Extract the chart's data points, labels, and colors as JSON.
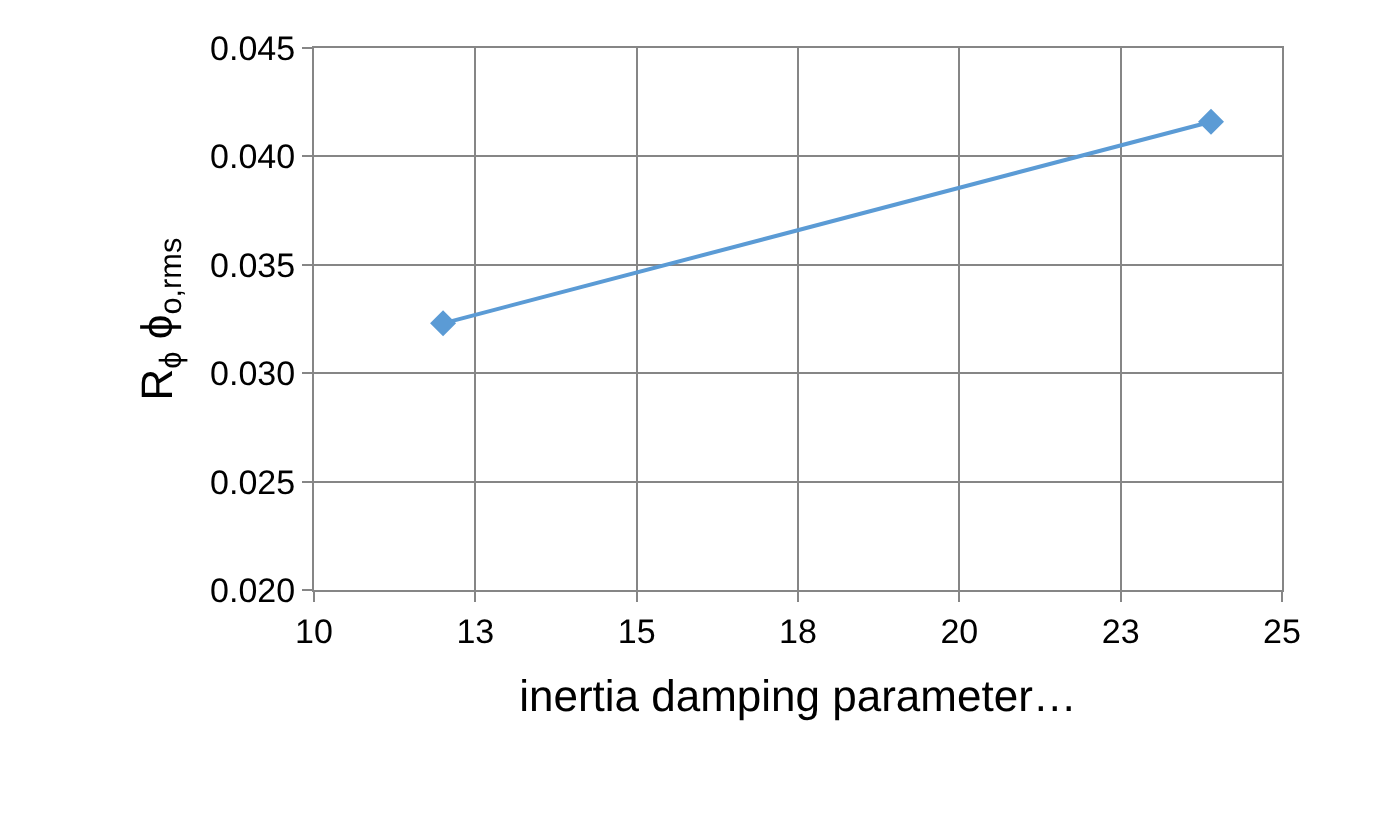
{
  "chart_data": {
    "type": "line",
    "xlabel": "inertia damping parameter…",
    "ylabel": "R$_{ϕ}$ ϕ$_{o,rms}$",
    "x": [
      12.0,
      23.9
    ],
    "series": [
      {
        "color": "#5b9bd5",
        "values": [
          0.0323,
          0.0416
        ]
      }
    ],
    "xlim": [
      10,
      25
    ],
    "xticks": [
      10,
      {
        "value": 12.5,
        "label": "13"
      },
      15,
      {
        "value": 17.5,
        "label": "18"
      },
      20,
      {
        "value": 22.5,
        "label": "23"
      },
      25
    ],
    "ylim": [
      0.02,
      0.045
    ],
    "yticks": [
      {
        "value": 0.02,
        "label": "0.020"
      },
      {
        "value": 0.025,
        "label": "0.025"
      },
      {
        "value": 0.03,
        "label": "0.030"
      },
      {
        "value": 0.035,
        "label": "0.035"
      },
      {
        "value": 0.04,
        "label": "0.040"
      },
      {
        "value": 0.045,
        "label": "0.045"
      }
    ],
    "grid": true,
    "marker": "diamond",
    "line_style": "solid"
  }
}
